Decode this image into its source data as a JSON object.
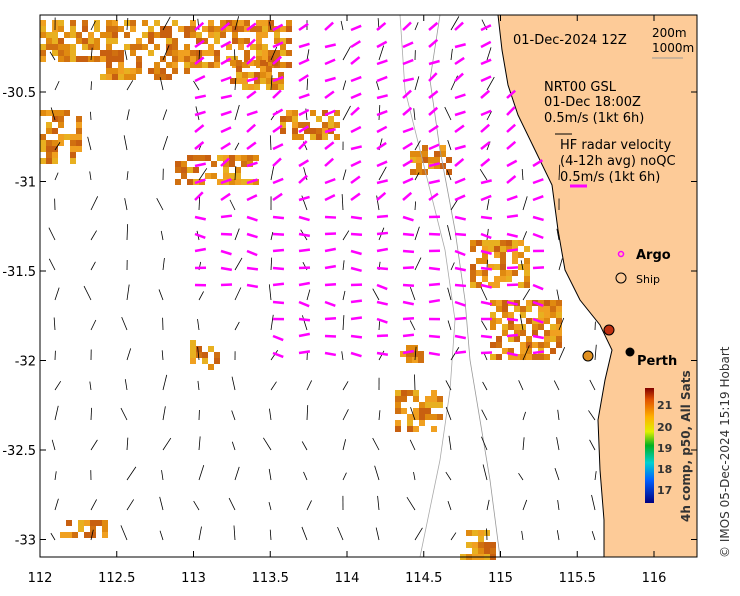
{
  "map": {
    "x_ticks": [
      "112",
      "112.5",
      "113",
      "113.5",
      "114",
      "114.5",
      "115",
      "115.5",
      "116"
    ],
    "y_ticks": [
      "-30.5",
      "-31",
      "-31.5",
      "-32",
      "-32.5",
      "-33"
    ],
    "date_label": "01-Dec-2024 12Z",
    "isobaths": [
      "200m",
      "1000m"
    ],
    "model_legend": [
      "NRT00 GSL",
      "01-Dec 18:00Z",
      "0.5m/s (1kt 6h)"
    ],
    "radar_legend": [
      "HF radar velocity",
      "(4-12h avg) noQC",
      "0.5m/s (1kt 6h)"
    ],
    "argo_label": "Argo",
    "ship_label": "Ship",
    "city_label": "Perth",
    "colorbar": {
      "ticks": [
        "21",
        "20",
        "19",
        "18",
        "17"
      ],
      "label": "4h comp, p50, All Sats"
    },
    "credit": "© IMOS 05-Dec-2024 15:19 Hobart",
    "colors": {
      "land": "#fdcb98",
      "radar": "#ff00ff",
      "sst": "#e08a10"
    }
  }
}
